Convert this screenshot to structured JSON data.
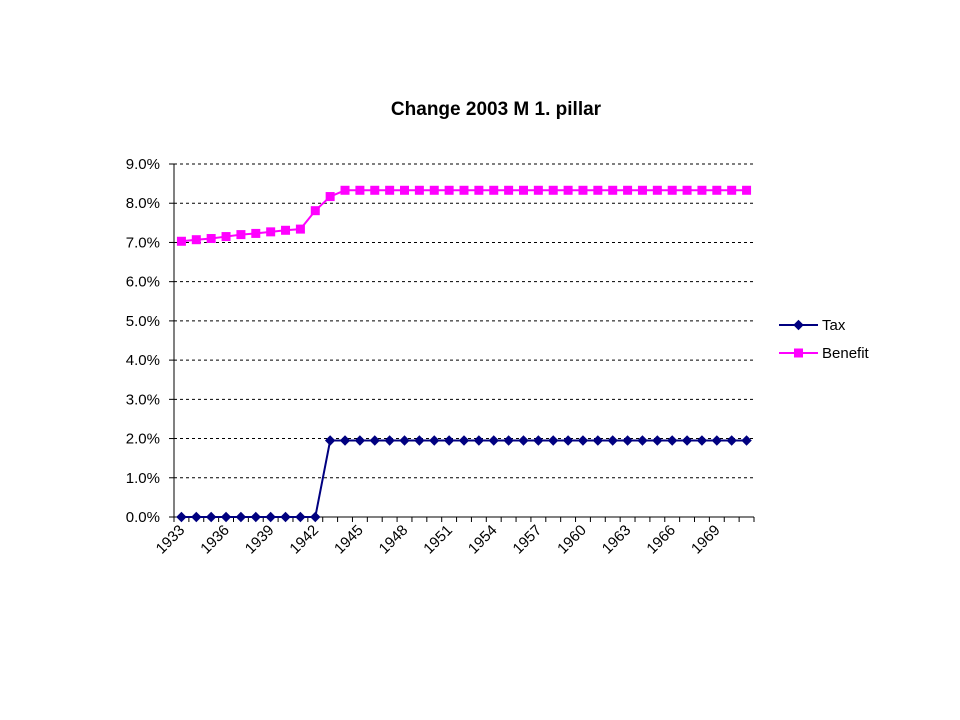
{
  "chart_data": {
    "type": "line",
    "title": "Change 2003 M 1. pillar",
    "xlabel": "",
    "ylabel": "",
    "x": [
      1933,
      1934,
      1935,
      1936,
      1937,
      1938,
      1939,
      1940,
      1941,
      1942,
      1943,
      1944,
      1945,
      1946,
      1947,
      1948,
      1949,
      1950,
      1951,
      1952,
      1953,
      1954,
      1955,
      1956,
      1957,
      1958,
      1959,
      1960,
      1961,
      1962,
      1963,
      1964,
      1965,
      1966,
      1967,
      1968,
      1969,
      1970,
      1971
    ],
    "x_tick_labels": [
      "1933",
      "1936",
      "1939",
      "1942",
      "1945",
      "1948",
      "1951",
      "1954",
      "1957",
      "1960",
      "1963",
      "1966",
      "1969"
    ],
    "ylim": [
      0,
      0.09
    ],
    "y_ticks": [
      0,
      0.01,
      0.02,
      0.03,
      0.04,
      0.05,
      0.06,
      0.07,
      0.08,
      0.09
    ],
    "y_tick_labels": [
      "0.0%",
      "1.0%",
      "2.0%",
      "3.0%",
      "4.0%",
      "5.0%",
      "6.0%",
      "7.0%",
      "8.0%",
      "9.0%"
    ],
    "grid": true,
    "legend_position": "right",
    "series": [
      {
        "name": "Tax",
        "color": "#000080",
        "marker": "diamond",
        "values": [
          0,
          0,
          0,
          0,
          0,
          0,
          0,
          0,
          0,
          0,
          0.0195,
          0.0195,
          0.0195,
          0.0195,
          0.0195,
          0.0195,
          0.0195,
          0.0195,
          0.0195,
          0.0195,
          0.0195,
          0.0195,
          0.0195,
          0.0195,
          0.0195,
          0.0195,
          0.0195,
          0.0195,
          0.0195,
          0.0195,
          0.0195,
          0.0195,
          0.0195,
          0.0195,
          0.0195,
          0.0195,
          0.0195,
          0.0195,
          0.0195
        ]
      },
      {
        "name": "Benefit",
        "color": "#FF00FF",
        "marker": "square",
        "values": [
          0.0703,
          0.0707,
          0.071,
          0.0715,
          0.072,
          0.0723,
          0.0727,
          0.0731,
          0.0734,
          0.0781,
          0.0817,
          0.0833,
          0.0833,
          0.0833,
          0.0833,
          0.0833,
          0.0833,
          0.0833,
          0.0833,
          0.0833,
          0.0833,
          0.0833,
          0.0833,
          0.0833,
          0.0833,
          0.0833,
          0.0833,
          0.0833,
          0.0833,
          0.0833,
          0.0833,
          0.0833,
          0.0833,
          0.0833,
          0.0833,
          0.0833,
          0.0833,
          0.0833,
          0.0833
        ]
      }
    ]
  }
}
